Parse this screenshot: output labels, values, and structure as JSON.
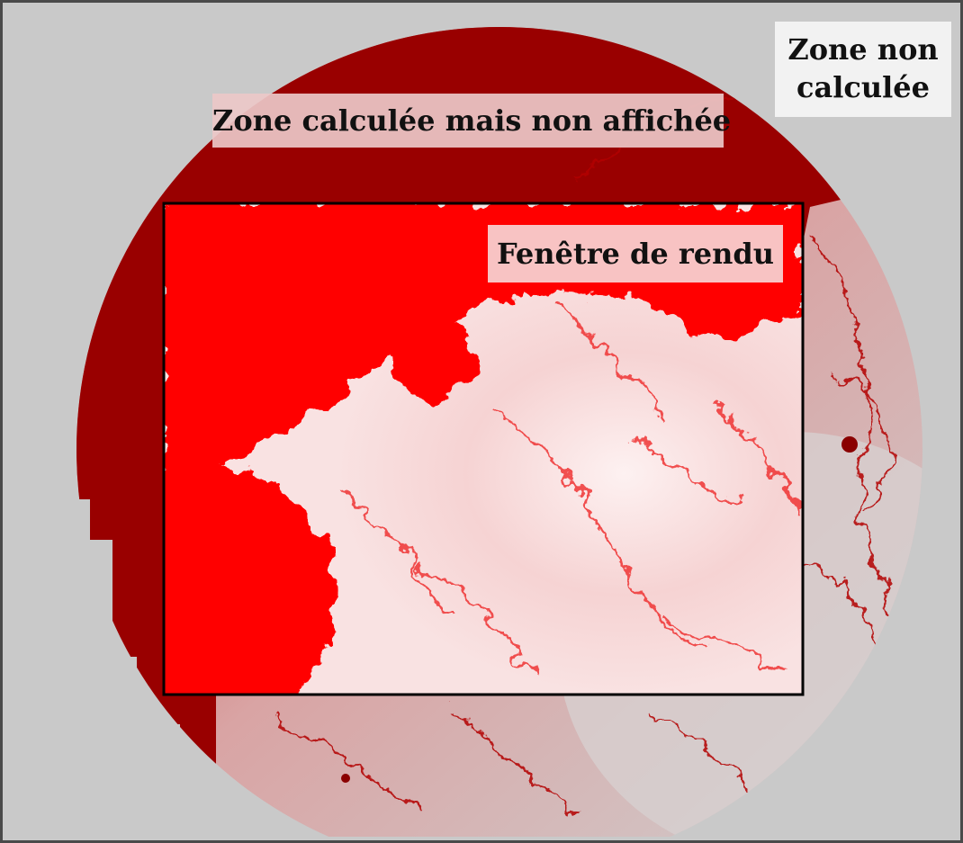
{
  "labels": {
    "not_computed_zone": "Zone non calculée",
    "computed_hidden_zone": "Zone calculée mais non affichée",
    "render_window": "Fenêtre de rendu"
  },
  "colors": {
    "background": "#c9c9c9",
    "computed_zone": "#990000",
    "render_window_fill": "#ff0000",
    "fractal_light": "#fde9e9",
    "frame": "#000000",
    "outer_border": "#4a4a4a"
  }
}
